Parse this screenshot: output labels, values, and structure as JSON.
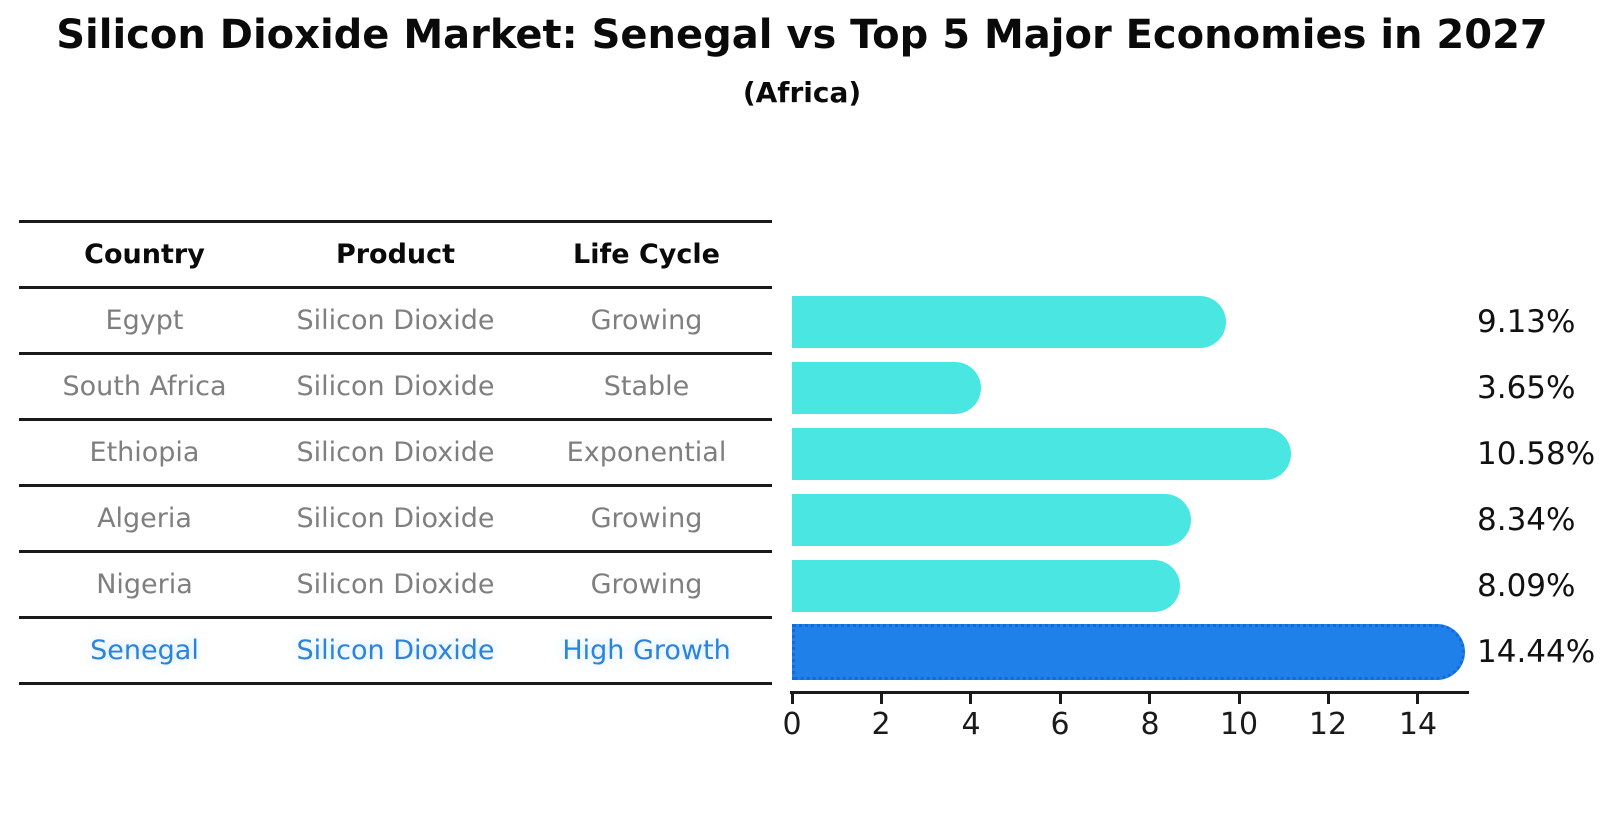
{
  "table": {
    "headers": [
      "Country",
      "Product",
      "Life Cycle"
    ],
    "rows": [
      {
        "country": "Egypt",
        "product": "Silicon Dioxide",
        "life_cycle": "Growing"
      },
      {
        "country": "South Africa",
        "product": "Silicon Dioxide",
        "life_cycle": "Stable"
      },
      {
        "country": "Ethiopia",
        "product": "Silicon Dioxide",
        "life_cycle": "Exponential"
      },
      {
        "country": "Algeria",
        "product": "Silicon Dioxide",
        "life_cycle": "Growing"
      },
      {
        "country": "Nigeria",
        "product": "Silicon Dioxide",
        "life_cycle": "Growing"
      },
      {
        "country": "Senegal",
        "product": "Silicon Dioxide",
        "life_cycle": "High Growth"
      }
    ],
    "highlight_row": "Senegal"
  },
  "chart_data": {
    "type": "bar",
    "orientation": "horizontal",
    "title": "Silicon Dioxide Market: Senegal vs Top 5 Major Economies in 2027",
    "subtitle": "(Africa)",
    "categories": [
      "Egypt",
      "South Africa",
      "Ethiopia",
      "Algeria",
      "Nigeria",
      "Senegal"
    ],
    "values": [
      9.13,
      3.65,
      10.58,
      8.34,
      8.09,
      14.44
    ],
    "value_labels": [
      "9.13%",
      "3.65%",
      "10.58%",
      "8.34%",
      "8.09%",
      "14.44%"
    ],
    "unit": "%",
    "x_ticks": [
      0,
      2,
      4,
      6,
      8,
      10,
      12,
      14
    ],
    "xlim": [
      0,
      15.2
    ],
    "grid": false,
    "legend": false,
    "highlight_index": 5,
    "colors": {
      "bar_default": "#4AE6E1",
      "bar_highlight": "#1E80E8",
      "bar_highlight_border": "#146BD6",
      "highlight_text": "#2B83DC",
      "body_text": "#7F7F7F",
      "axis": "#1A1A1A"
    }
  }
}
